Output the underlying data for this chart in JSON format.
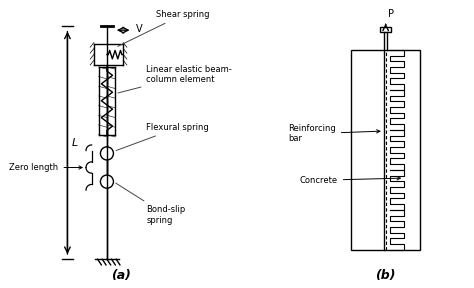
{
  "bg_color": "#ffffff",
  "line_color": "#000000",
  "gray_color": "#444444",
  "fig_width": 4.74,
  "fig_height": 2.88,
  "label_a": "(a)",
  "label_b": "(b)",
  "labels": {
    "shear_spring": "Shear spring",
    "linear_elastic": "Linear elastic beam-\ncolumn element",
    "flexural_spring": "Flexural spring",
    "bond_slip": "Bond-slip\nspring",
    "zero_length": "Zero length",
    "L": "L",
    "V": "V",
    "P": "P",
    "reinforcing_bar": "Reinforcing\nbar",
    "concrete": "Concrete"
  }
}
